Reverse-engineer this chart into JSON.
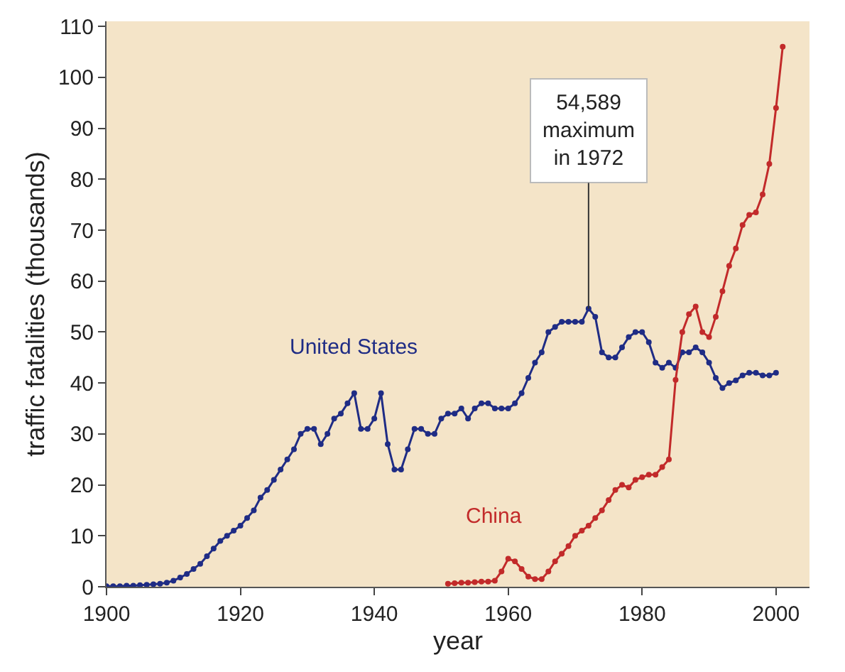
{
  "chart_data": {
    "type": "line",
    "xlabel": "year",
    "ylabel": "traffic fatalities (thousands)",
    "xlim": [
      1900,
      2005
    ],
    "ylim": [
      0,
      111
    ],
    "xticks": [
      1900,
      1920,
      1940,
      1960,
      1980,
      2000
    ],
    "yticks": [
      0,
      10,
      20,
      30,
      40,
      50,
      60,
      70,
      80,
      90,
      100,
      110
    ],
    "grid": false,
    "legend": false,
    "marker": "circle",
    "line_style": "solid",
    "annotations": [
      {
        "text": "54,589\nmaximum\nin 1972",
        "x": 1972,
        "y": 54.6
      }
    ],
    "series": [
      {
        "name": "United States",
        "color": "#1f2c85",
        "x": [
          1900,
          1901,
          1902,
          1903,
          1904,
          1905,
          1906,
          1907,
          1908,
          1909,
          1910,
          1911,
          1912,
          1913,
          1914,
          1915,
          1916,
          1917,
          1918,
          1919,
          1920,
          1921,
          1922,
          1923,
          1924,
          1925,
          1926,
          1927,
          1928,
          1929,
          1930,
          1931,
          1932,
          1933,
          1934,
          1935,
          1936,
          1937,
          1938,
          1939,
          1940,
          1941,
          1942,
          1943,
          1944,
          1945,
          1946,
          1947,
          1948,
          1949,
          1950,
          1951,
          1952,
          1953,
          1954,
          1955,
          1956,
          1957,
          1958,
          1959,
          1960,
          1961,
          1962,
          1963,
          1964,
          1965,
          1966,
          1967,
          1968,
          1969,
          1970,
          1971,
          1972,
          1973,
          1974,
          1975,
          1976,
          1977,
          1978,
          1979,
          1980,
          1981,
          1982,
          1983,
          1984,
          1985,
          1986,
          1987,
          1988,
          1989,
          1990,
          1991,
          1992,
          1993,
          1994,
          1995,
          1996,
          1997,
          1998,
          1999,
          2000
        ],
        "values": [
          0.1,
          0.1,
          0.1,
          0.2,
          0.2,
          0.3,
          0.4,
          0.5,
          0.6,
          0.8,
          1.2,
          1.8,
          2.5,
          3.5,
          4.5,
          6,
          7.5,
          9,
          10,
          11,
          12,
          13.5,
          15,
          17.5,
          19,
          21,
          23,
          25,
          27,
          30,
          31,
          31,
          28,
          30,
          33,
          34,
          36,
          38,
          31,
          31,
          33,
          38,
          28,
          23,
          23,
          27,
          31,
          31,
          30,
          30,
          33,
          34,
          34,
          35,
          33,
          35,
          36,
          36,
          35,
          35,
          35,
          36,
          38,
          41,
          44,
          46,
          50,
          51,
          52,
          52,
          52,
          52,
          54.6,
          53,
          46,
          45,
          45,
          47,
          49,
          50,
          50,
          48,
          44,
          43,
          44,
          43,
          46,
          46,
          47,
          46,
          44,
          41,
          39,
          40,
          40.5,
          41.5,
          42,
          42,
          41.5,
          41.5,
          42
        ]
      },
      {
        "name": "China",
        "color": "#c22a2a",
        "x": [
          1951,
          1952,
          1953,
          1954,
          1955,
          1956,
          1957,
          1958,
          1959,
          1960,
          1961,
          1962,
          1963,
          1964,
          1965,
          1966,
          1967,
          1968,
          1969,
          1970,
          1971,
          1972,
          1973,
          1974,
          1975,
          1976,
          1977,
          1978,
          1979,
          1980,
          1981,
          1982,
          1983,
          1984,
          1985,
          1986,
          1987,
          1988,
          1989,
          1990,
          1991,
          1992,
          1993,
          1994,
          1995,
          1996,
          1997,
          1998,
          1999,
          2000,
          2001
        ],
        "values": [
          0.6,
          0.7,
          0.8,
          0.8,
          0.9,
          1,
          1,
          1.2,
          3,
          5.5,
          5,
          3.5,
          2,
          1.5,
          1.5,
          3,
          5,
          6.5,
          8,
          10,
          11,
          12,
          13.5,
          15,
          17,
          19,
          20,
          19.5,
          21,
          21.5,
          22,
          22,
          23.5,
          25,
          40.6,
          50,
          53.5,
          55,
          50,
          49,
          53,
          58,
          63,
          66.4,
          71,
          73,
          73.5,
          77,
          83,
          94,
          106
        ]
      }
    ]
  }
}
